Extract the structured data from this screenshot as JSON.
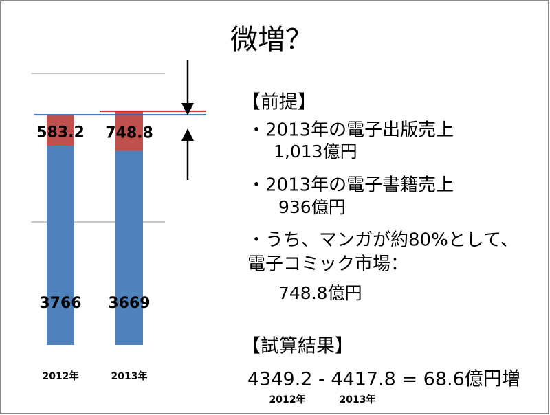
{
  "chart_data": {
    "type": "bar",
    "stacked": true,
    "categories": [
      "2012年",
      "2013年"
    ],
    "series": [
      {
        "name": null,
        "color": "#4f81bd",
        "values": [
          3766,
          3669
        ]
      },
      {
        "name": null,
        "color": "#c0504d",
        "values": [
          583.2,
          748.8
        ]
      }
    ],
    "ylim": [
      0,
      6000
    ]
  },
  "slide": {
    "title": "微増？",
    "premise": {
      "heading": "【前提】",
      "items": [
        {
          "lines": [
            "・2013年の電子出版売上"
          ],
          "value": "1,013億円"
        },
        {
          "lines": [
            "・2013年の電子書籍売上"
          ],
          "value": "936億円"
        },
        {
          "lines": [
            "・うち、マンガが約80%として、",
            "電子コミック市場："
          ],
          "value": "748.8億円"
        }
      ]
    },
    "result": {
      "heading": "【試算結果】",
      "formula": "4349.2 - 4417.8 = 68.6億円増",
      "labels": [
        "2012年",
        "2013年"
      ]
    }
  }
}
